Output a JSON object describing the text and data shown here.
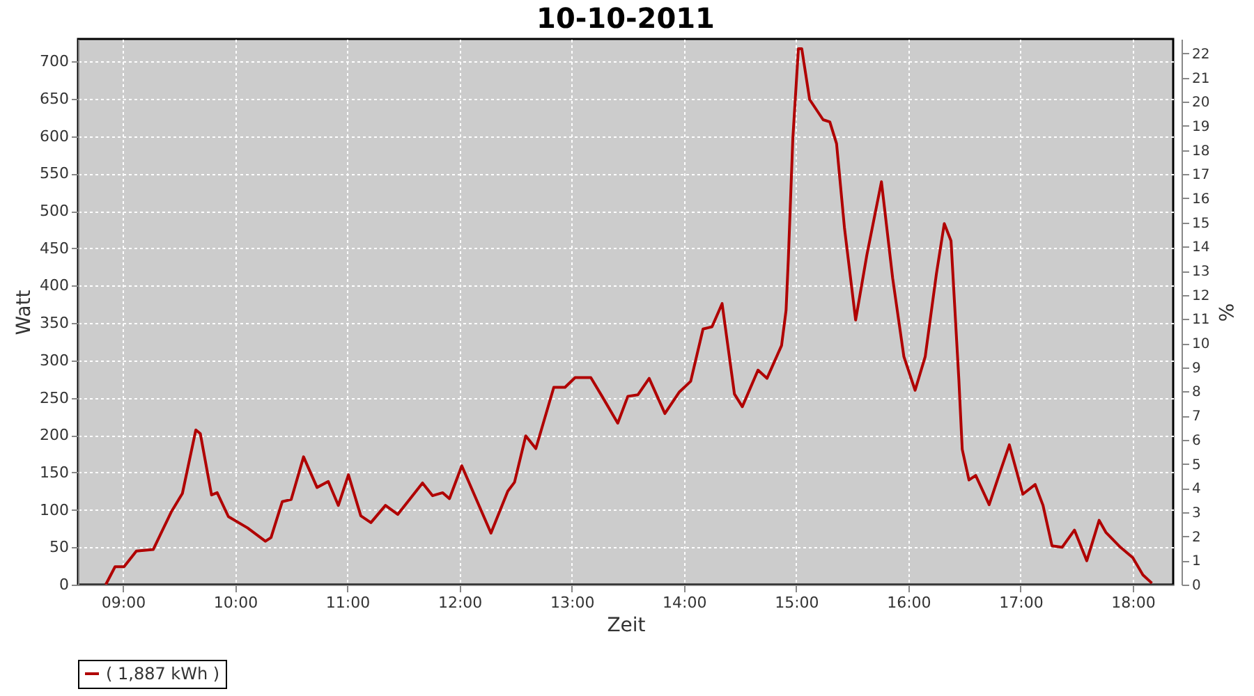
{
  "chart_data": {
    "type": "line",
    "title": "10-10-2011",
    "xlabel": "Zeit",
    "ylabel": "Watt",
    "y2label": "%",
    "x": [
      8.847,
      8.93,
      9.01,
      9.12,
      9.27,
      9.43,
      9.53,
      9.65,
      9.69,
      9.79,
      9.84,
      9.94,
      10.11,
      10.27,
      10.32,
      10.42,
      10.5,
      10.61,
      10.73,
      10.83,
      10.92,
      11.01,
      11.12,
      11.21,
      11.34,
      11.45,
      11.67,
      11.76,
      11.85,
      11.91,
      12.02,
      12.28,
      12.43,
      12.49,
      12.59,
      12.68,
      12.84,
      12.94,
      13.03,
      13.17,
      13.27,
      13.41,
      13.5,
      13.59,
      13.69,
      13.83,
      13.96,
      14.06,
      14.17,
      14.25,
      14.34,
      14.45,
      14.52,
      14.66,
      14.74,
      14.87,
      14.91,
      14.93,
      14.97,
      15.02,
      15.05,
      15.12,
      15.24,
      15.3,
      15.36,
      15.43,
      15.53,
      15.63,
      15.76,
      15.86,
      15.96,
      16.06,
      16.15,
      16.25,
      16.32,
      16.38,
      16.45,
      16.48,
      16.54,
      16.6,
      16.72,
      16.8,
      16.9,
      17.02,
      17.13,
      17.2,
      17.28,
      17.37,
      17.48,
      17.59,
      17.7,
      17.76,
      17.89,
      18.0,
      18.09,
      18.17
    ],
    "series": [
      {
        "name": "( 1,887 kWh )",
        "color": "#b00000",
        "values": [
          0,
          24,
          24,
          45,
          47,
          97,
          122,
          207,
          202,
          120,
          123,
          91,
          76,
          58,
          63,
          111,
          114,
          171,
          130,
          138,
          106,
          147,
          92,
          83,
          106,
          94,
          136,
          119,
          123,
          115,
          159,
          69,
          125,
          137,
          199,
          182,
          264,
          264,
          277,
          277,
          252,
          216,
          252,
          254,
          276,
          229,
          258,
          272,
          342,
          345,
          376,
          255,
          238,
          287,
          276,
          320,
          367,
          435,
          596,
          717,
          717,
          649,
          622,
          619,
          590,
          478,
          354,
          441,
          539,
          410,
          305,
          260,
          305,
          416,
          483,
          460,
          274,
          181,
          140,
          146,
          107,
          143,
          187,
          121,
          134,
          106,
          52,
          50,
          73,
          32,
          86,
          70,
          50,
          36,
          13,
          2
        ]
      }
    ],
    "xlim": [
      8.6,
      18.36
    ],
    "xticks": [
      {
        "value": 9,
        "label": "09:00"
      },
      {
        "value": 10,
        "label": "10:00"
      },
      {
        "value": 11,
        "label": "11:00"
      },
      {
        "value": 12,
        "label": "12:00"
      },
      {
        "value": 13,
        "label": "13:00"
      },
      {
        "value": 14,
        "label": "14:00"
      },
      {
        "value": 15,
        "label": "15:00"
      },
      {
        "value": 16,
        "label": "16:00"
      },
      {
        "value": 17,
        "label": "17:00"
      },
      {
        "value": 18,
        "label": "18:00"
      }
    ],
    "ylim": [
      0,
      730
    ],
    "yticks": [
      0,
      50,
      100,
      150,
      200,
      250,
      300,
      350,
      400,
      450,
      500,
      550,
      600,
      650,
      700
    ],
    "y2lim": [
      0,
      22.6
    ],
    "y2ticks": [
      0,
      1,
      2,
      3,
      4,
      5,
      6,
      7,
      8,
      9,
      10,
      11,
      12,
      13,
      14,
      15,
      16,
      17,
      18,
      19,
      20,
      21,
      22
    ],
    "grid": true,
    "legend": "bottom",
    "line_style": "solid"
  }
}
